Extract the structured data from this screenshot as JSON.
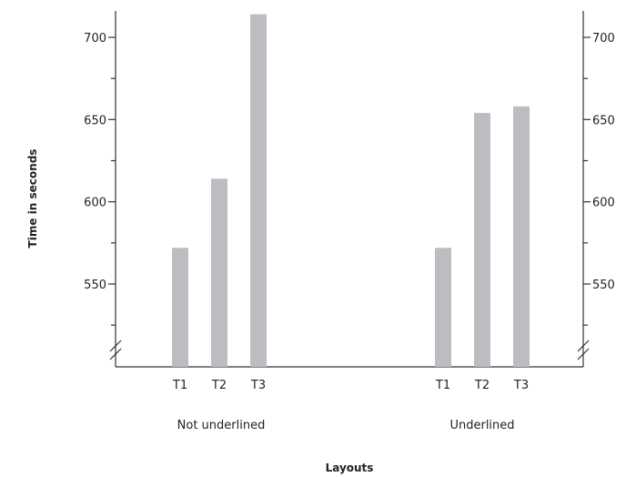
{
  "chart_data": {
    "type": "bar",
    "xlabel": "Layouts",
    "ylabel": "Time in seconds",
    "ylim": [
      505,
      715
    ],
    "yticks": [
      550,
      600,
      650,
      700
    ],
    "axis_break": true,
    "bar_color": "#bcbdc0",
    "groups": [
      {
        "name": "Not underlined",
        "categories": [
          "T1",
          "T2",
          "T3"
        ],
        "values": [
          572,
          614,
          714
        ]
      },
      {
        "name": "Underlined",
        "categories": [
          "T1",
          "T2",
          "T3"
        ],
        "values": [
          572,
          654,
          658
        ]
      }
    ]
  }
}
